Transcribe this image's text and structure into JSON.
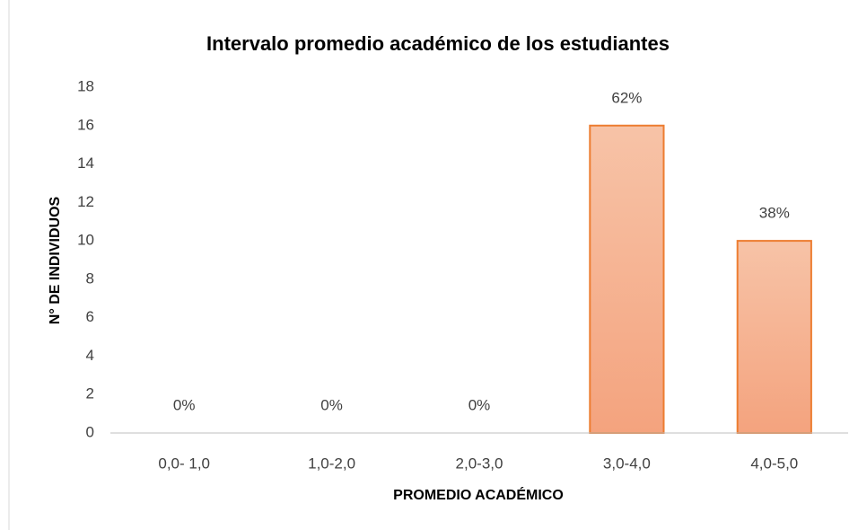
{
  "chart_data": {
    "type": "bar",
    "title": "Intervalo promedio académico de los estudiantes",
    "x_label": "PROMEDIO ACADÉMICO",
    "y_label": "N° DE INDIVIDUOS",
    "categories": [
      "0,0- 1,0",
      "1,0-2,0",
      "2,0-3,0",
      "3,0-4,0",
      "4,0-5,0"
    ],
    "values": [
      0,
      0,
      0,
      16,
      10
    ],
    "share_labels": [
      "0%",
      "0%",
      "0%",
      "62%",
      "38%"
    ],
    "color": "#ed7d31",
    "ylim": [
      0,
      18
    ],
    "yticks": [
      0,
      2,
      4,
      6,
      8,
      10,
      12,
      14,
      16,
      18
    ],
    "grid": false
  }
}
